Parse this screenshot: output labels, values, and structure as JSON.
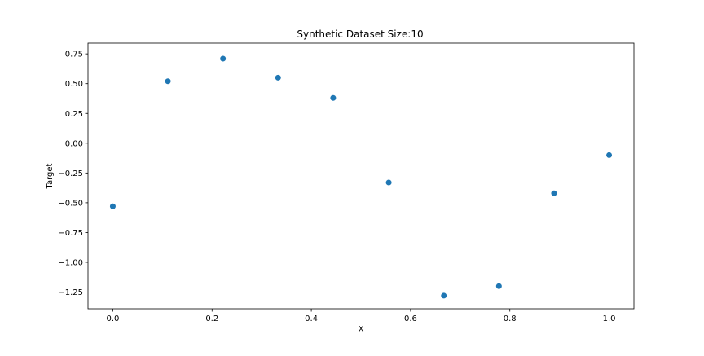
{
  "chart_data": {
    "type": "scatter",
    "title": "Synthetic Dataset Size:10",
    "xlabel": "X",
    "ylabel": "Target",
    "xlim": [
      -0.05,
      1.05
    ],
    "ylim": [
      -1.39,
      0.84
    ],
    "xticks": [
      {
        "value": 0.0,
        "label": "0.0"
      },
      {
        "value": 0.2,
        "label": "0.2"
      },
      {
        "value": 0.4,
        "label": "0.4"
      },
      {
        "value": 0.6,
        "label": "0.6"
      },
      {
        "value": 0.8,
        "label": "0.8"
      },
      {
        "value": 1.0,
        "label": "1.0"
      }
    ],
    "yticks": [
      {
        "value": 0.75,
        "label": "0.75"
      },
      {
        "value": 0.5,
        "label": "0.50"
      },
      {
        "value": 0.25,
        "label": "0.25"
      },
      {
        "value": 0.0,
        "label": "0.00"
      },
      {
        "value": -0.25,
        "label": "−0.25"
      },
      {
        "value": -0.5,
        "label": "−0.50"
      },
      {
        "value": -0.75,
        "label": "−0.75"
      },
      {
        "value": -1.0,
        "label": "−1.00"
      },
      {
        "value": -1.25,
        "label": "−1.25"
      }
    ],
    "grid": false,
    "marker_color": "#1f77b4",
    "points": [
      {
        "x": 0.0,
        "y": -0.53
      },
      {
        "x": 0.111,
        "y": 0.52
      },
      {
        "x": 0.222,
        "y": 0.71
      },
      {
        "x": 0.333,
        "y": 0.55
      },
      {
        "x": 0.444,
        "y": 0.38
      },
      {
        "x": 0.556,
        "y": -0.33
      },
      {
        "x": 0.667,
        "y": -1.28
      },
      {
        "x": 0.778,
        "y": -1.2
      },
      {
        "x": 0.889,
        "y": -0.42
      },
      {
        "x": 1.0,
        "y": -0.1
      }
    ]
  }
}
